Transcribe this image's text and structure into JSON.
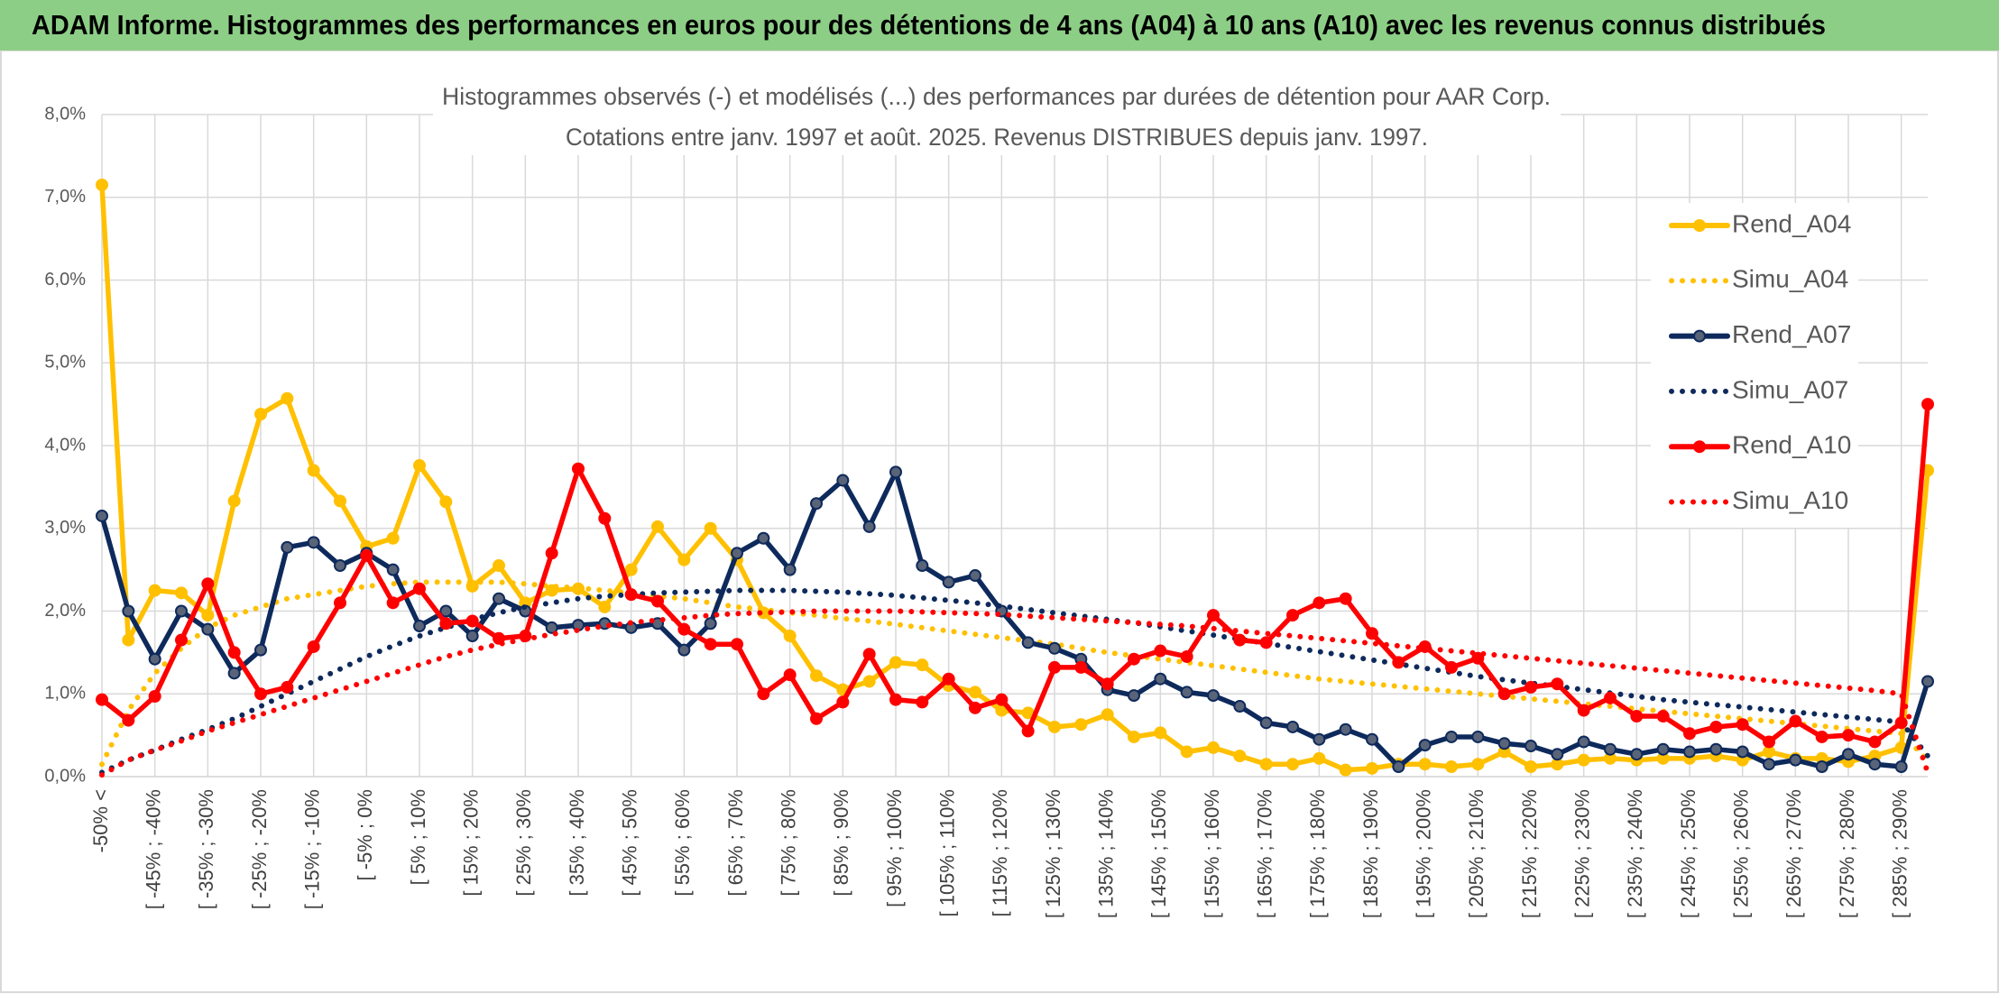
{
  "chart_data": {
    "type": "line",
    "title": "ADAM Informe. Histogrammes des performances en euros pour des détentions de 4 ans (A04) à 10 ans (A10) avec les revenus connus distribués",
    "subtitle": [
      "Histogrammes observés (-) et modélisés (...) des performances par durées de détention pour AAR Corp.",
      "Cotations entre janv. 1997 et août. 2025. Revenus DISTRIBUES depuis janv. 1997."
    ],
    "categories": [
      "-50% <",
      null,
      "[ -45% ; -40%",
      null,
      "[ -35% ; -30%",
      null,
      "[ -25% ; -20%",
      null,
      "[ -15% ; -10%",
      null,
      "[ -5% ; 0%",
      null,
      "[ 5% ; 10%",
      null,
      "[ 15% ; 20%",
      null,
      "[ 25% ; 30%",
      null,
      "[ 35% ; 40%",
      null,
      "[ 45% ; 50%",
      null,
      "[ 55% ; 60%",
      null,
      "[ 65% ; 70%",
      null,
      "[ 75% ; 80%",
      null,
      "[ 85% ; 90%",
      null,
      "[ 95% ; 100%",
      null,
      "[ 105% ; 110%",
      null,
      "[ 115% ; 120%",
      null,
      "[ 125% ; 130%",
      null,
      "[ 135% ; 140%",
      null,
      "[ 145% ; 150%",
      null,
      "[ 155% ; 160%",
      null,
      "[ 165% ; 170%",
      null,
      "[ 175% ; 180%",
      null,
      "[ 185% ; 190%",
      null,
      "[ 195% ; 200%",
      null,
      "[ 205% ; 210%",
      null,
      "[ 215% ; 220%",
      null,
      "[ 225% ; 230%",
      null,
      "[ 235% ; 240%",
      null,
      "[ 245% ; 250%",
      null,
      "[ 255% ; 260%",
      null,
      "[ 265% ; 270%",
      null,
      "[ 275% ; 280%",
      null,
      "[ 285% ; 290%",
      null
    ],
    "ylim": [
      0,
      8
    ],
    "yticks": [
      {
        "value": 0,
        "label": "0,0%"
      },
      {
        "value": 1,
        "label": "1,0%"
      },
      {
        "value": 2,
        "label": "2,0%"
      },
      {
        "value": 3,
        "label": "3,0%"
      },
      {
        "value": 4,
        "label": "4,0%"
      },
      {
        "value": 5,
        "label": "5,0%"
      },
      {
        "value": 6,
        "label": "6,0%"
      },
      {
        "value": 7,
        "label": "7,0%"
      },
      {
        "value": 8,
        "label": "8,0%"
      }
    ],
    "grid": true,
    "legend": "right",
    "series": [
      {
        "name": "Rend_A04",
        "color": "#ffc000",
        "line_style": "solid",
        "markers": true,
        "values": [
          7.15,
          1.65,
          2.25,
          2.22,
          1.95,
          3.33,
          4.38,
          4.57,
          3.7,
          3.33,
          2.78,
          2.88,
          3.76,
          3.32,
          2.3,
          2.55,
          2.1,
          2.25,
          2.27,
          2.05,
          2.5,
          3.02,
          2.62,
          3.0,
          2.62,
          1.98,
          1.7,
          1.22,
          1.05,
          1.15,
          1.38,
          1.35,
          1.1,
          1.02,
          0.8,
          0.77,
          0.6,
          0.63,
          0.75,
          0.48,
          0.53,
          0.3,
          0.35,
          0.25,
          0.15,
          0.15,
          0.22,
          0.08,
          0.1,
          0.15,
          0.15,
          0.12,
          0.15,
          0.3,
          0.12,
          0.15,
          0.2,
          0.22,
          0.2,
          0.22,
          0.22,
          0.25,
          0.2,
          0.3,
          0.22,
          0.22,
          0.18,
          0.25,
          0.35,
          3.7
        ]
      },
      {
        "name": "Simu_A04",
        "color": "#ffc000",
        "line_style": "dotted",
        "markers": false,
        "values": [
          0.15,
          0.8,
          1.25,
          1.55,
          1.8,
          1.95,
          2.05,
          2.15,
          2.2,
          2.25,
          2.3,
          2.33,
          2.35,
          2.35,
          2.35,
          2.35,
          2.33,
          2.3,
          2.28,
          2.25,
          2.22,
          2.18,
          2.15,
          2.1,
          2.05,
          2.02,
          1.98,
          1.95,
          1.91,
          1.88,
          1.84,
          1.8,
          1.76,
          1.72,
          1.68,
          1.64,
          1.6,
          1.55,
          1.5,
          1.46,
          1.42,
          1.38,
          1.34,
          1.3,
          1.26,
          1.22,
          1.18,
          1.15,
          1.12,
          1.09,
          1.06,
          1.03,
          1.0,
          0.97,
          0.94,
          0.91,
          0.88,
          0.85,
          0.82,
          0.79,
          0.76,
          0.73,
          0.7,
          0.67,
          0.64,
          0.61,
          0.58,
          0.55,
          0.52,
          0.2
        ]
      },
      {
        "name": "Rend_A07",
        "color": "#0e2a5c",
        "line_style": "solid",
        "markers": true,
        "values": [
          3.15,
          2.0,
          1.42,
          2.0,
          1.78,
          1.25,
          1.53,
          2.77,
          2.83,
          2.55,
          2.7,
          2.5,
          1.82,
          2.0,
          1.7,
          2.15,
          2.0,
          1.8,
          1.83,
          1.85,
          1.8,
          1.85,
          1.53,
          1.85,
          2.7,
          2.88,
          2.5,
          3.3,
          3.58,
          3.02,
          3.68,
          2.55,
          2.35,
          2.43,
          2.0,
          1.62,
          1.55,
          1.42,
          1.05,
          0.98,
          1.18,
          1.02,
          0.98,
          0.85,
          0.65,
          0.6,
          0.45,
          0.57,
          0.45,
          0.12,
          0.38,
          0.48,
          0.48,
          0.4,
          0.37,
          0.27,
          0.42,
          0.33,
          0.27,
          0.33,
          0.3,
          0.33,
          0.3,
          0.15,
          0.2,
          0.12,
          0.27,
          0.15,
          0.12,
          1.15
        ]
      },
      {
        "name": "Simu_A07",
        "color": "#0e2a5c",
        "line_style": "dotted",
        "markers": false,
        "values": [
          0.05,
          0.2,
          0.32,
          0.45,
          0.57,
          0.7,
          0.85,
          1.0,
          1.15,
          1.3,
          1.45,
          1.58,
          1.7,
          1.8,
          1.9,
          1.98,
          2.05,
          2.1,
          2.15,
          2.18,
          2.2,
          2.22,
          2.23,
          2.24,
          2.25,
          2.25,
          2.25,
          2.24,
          2.23,
          2.21,
          2.19,
          2.16,
          2.13,
          2.1,
          2.06,
          2.02,
          1.98,
          1.94,
          1.9,
          1.86,
          1.81,
          1.76,
          1.71,
          1.66,
          1.61,
          1.56,
          1.51,
          1.46,
          1.41,
          1.36,
          1.31,
          1.26,
          1.21,
          1.17,
          1.13,
          1.09,
          1.05,
          1.01,
          0.97,
          0.93,
          0.9,
          0.87,
          0.84,
          0.81,
          0.78,
          0.75,
          0.72,
          0.69,
          0.66,
          0.25
        ]
      },
      {
        "name": "Rend_A10",
        "color": "#ff0000",
        "line_style": "solid",
        "markers": true,
        "values": [
          0.93,
          0.68,
          0.97,
          1.65,
          2.33,
          1.5,
          1.0,
          1.08,
          1.57,
          2.1,
          2.67,
          2.1,
          2.27,
          1.85,
          1.88,
          1.67,
          1.7,
          2.7,
          3.72,
          3.12,
          2.2,
          2.12,
          1.78,
          1.6,
          1.6,
          1.0,
          1.23,
          0.7,
          0.9,
          1.48,
          0.93,
          0.9,
          1.18,
          0.83,
          0.93,
          0.55,
          1.32,
          1.32,
          1.12,
          1.42,
          1.52,
          1.45,
          1.95,
          1.65,
          1.62,
          1.95,
          2.1,
          2.15,
          1.73,
          1.38,
          1.57,
          1.32,
          1.43,
          1.0,
          1.08,
          1.12,
          0.8,
          0.95,
          0.73,
          0.73,
          0.52,
          0.6,
          0.63,
          0.42,
          0.67,
          0.48,
          0.5,
          0.42,
          0.65,
          4.5
        ]
      },
      {
        "name": "Simu_A10",
        "color": "#ff0000",
        "line_style": "dotted",
        "markers": false,
        "values": [
          0.02,
          0.2,
          0.32,
          0.43,
          0.55,
          0.65,
          0.75,
          0.85,
          0.95,
          1.05,
          1.15,
          1.25,
          1.35,
          1.45,
          1.53,
          1.6,
          1.66,
          1.72,
          1.77,
          1.82,
          1.86,
          1.89,
          1.92,
          1.95,
          1.97,
          1.98,
          1.99,
          2.0,
          2.0,
          2.0,
          2.0,
          1.99,
          1.98,
          1.97,
          1.96,
          1.94,
          1.92,
          1.9,
          1.88,
          1.86,
          1.84,
          1.82,
          1.79,
          1.76,
          1.73,
          1.7,
          1.67,
          1.64,
          1.61,
          1.58,
          1.55,
          1.52,
          1.49,
          1.46,
          1.43,
          1.4,
          1.37,
          1.34,
          1.31,
          1.28,
          1.25,
          1.22,
          1.19,
          1.16,
          1.13,
          1.1,
          1.07,
          1.04,
          1.0,
          0.05
        ]
      }
    ]
  }
}
